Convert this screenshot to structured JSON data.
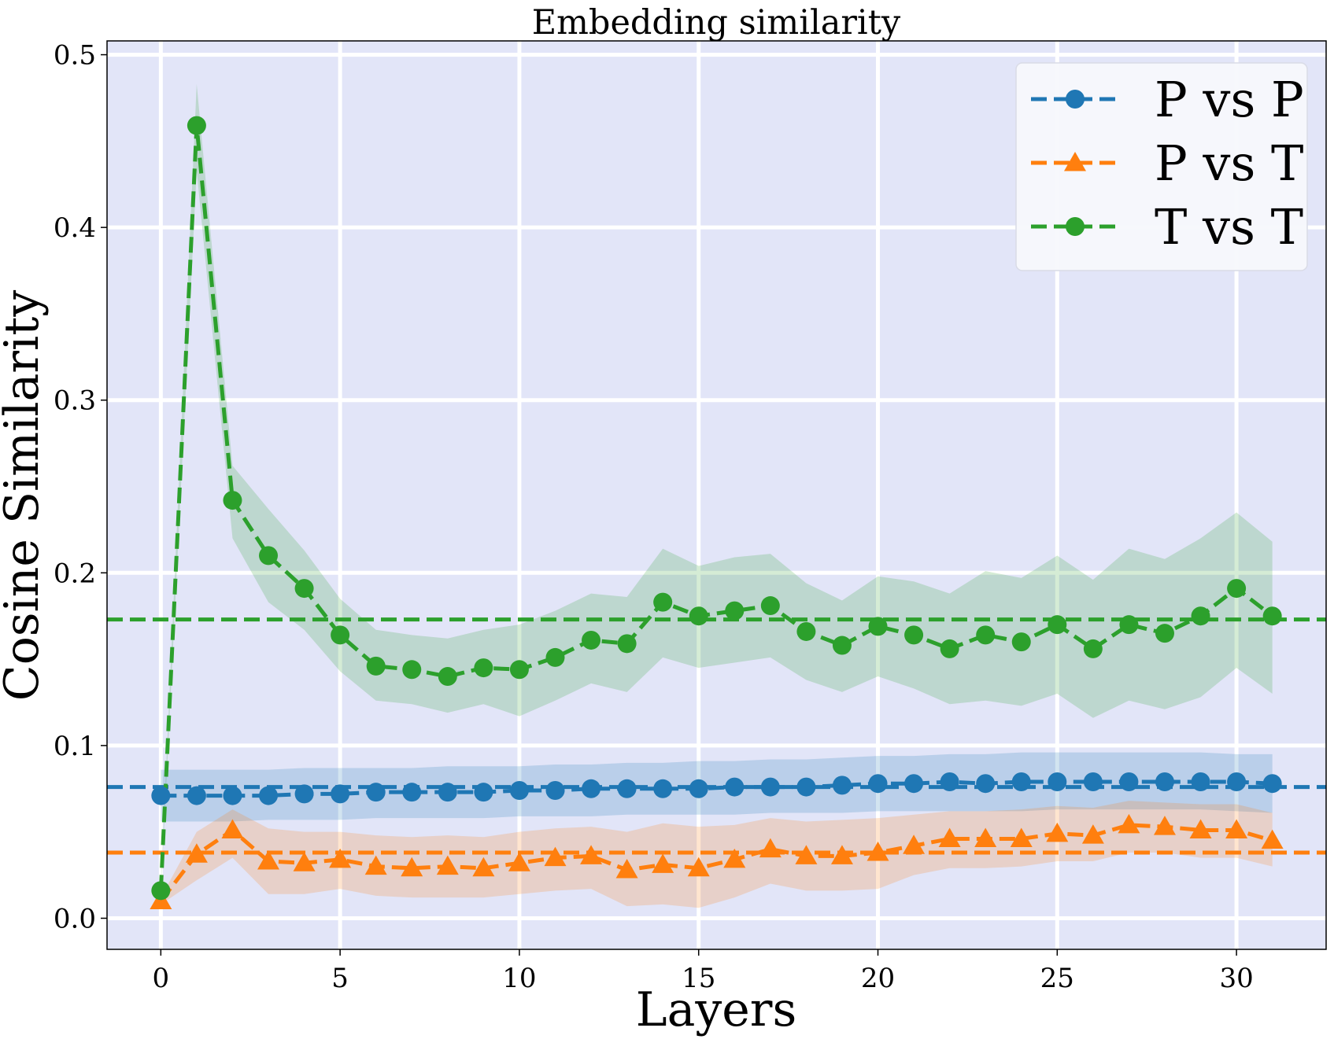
{
  "chart_data": {
    "type": "line",
    "title": "Embedding similarity",
    "xlabel": "Layers",
    "ylabel": "Cosine Similarity",
    "xlim": [
      -1.5,
      32.5
    ],
    "ylim": [
      -0.018,
      0.508
    ],
    "xticks": [
      0,
      5,
      10,
      15,
      20,
      25,
      30
    ],
    "xtick_labels": [
      "0",
      "5",
      "10",
      "15",
      "20",
      "25",
      "30"
    ],
    "yticks": [
      0.0,
      0.1,
      0.2,
      0.3,
      0.4,
      0.5
    ],
    "ytick_labels": [
      "0.0",
      "0.1",
      "0.2",
      "0.3",
      "0.4",
      "0.5"
    ],
    "grid": true,
    "legend_position": "top-right",
    "x": [
      0,
      1,
      2,
      3,
      4,
      5,
      6,
      7,
      8,
      9,
      10,
      11,
      12,
      13,
      14,
      15,
      16,
      17,
      18,
      19,
      20,
      21,
      22,
      23,
      24,
      25,
      26,
      27,
      28,
      29,
      30,
      31
    ],
    "series": [
      {
        "name": "P vs P",
        "color": "#1f77b4",
        "marker": "circle",
        "values": [
          0.071,
          0.071,
          0.071,
          0.071,
          0.072,
          0.072,
          0.073,
          0.073,
          0.073,
          0.073,
          0.074,
          0.074,
          0.075,
          0.075,
          0.075,
          0.075,
          0.076,
          0.076,
          0.076,
          0.077,
          0.078,
          0.078,
          0.079,
          0.078,
          0.079,
          0.079,
          0.079,
          0.079,
          0.079,
          0.079,
          0.079,
          0.078
        ],
        "upper": [
          0.086,
          0.086,
          0.086,
          0.086,
          0.087,
          0.087,
          0.087,
          0.087,
          0.088,
          0.088,
          0.088,
          0.089,
          0.089,
          0.09,
          0.09,
          0.091,
          0.091,
          0.092,
          0.092,
          0.093,
          0.094,
          0.094,
          0.095,
          0.095,
          0.096,
          0.096,
          0.096,
          0.096,
          0.096,
          0.096,
          0.095,
          0.095
        ],
        "lower": [
          0.056,
          0.056,
          0.056,
          0.057,
          0.057,
          0.057,
          0.058,
          0.058,
          0.058,
          0.058,
          0.059,
          0.059,
          0.059,
          0.06,
          0.06,
          0.06,
          0.06,
          0.061,
          0.061,
          0.061,
          0.062,
          0.062,
          0.062,
          0.062,
          0.062,
          0.063,
          0.063,
          0.063,
          0.063,
          0.063,
          0.062,
          0.061
        ],
        "mean_line": 0.076
      },
      {
        "name": "P vs T",
        "color": "#ff7f0e",
        "marker": "triangle",
        "values": [
          0.01,
          0.037,
          0.051,
          0.033,
          0.032,
          0.034,
          0.03,
          0.029,
          0.03,
          0.029,
          0.032,
          0.035,
          0.036,
          0.028,
          0.031,
          0.029,
          0.034,
          0.04,
          0.036,
          0.036,
          0.038,
          0.042,
          0.046,
          0.046,
          0.046,
          0.049,
          0.048,
          0.054,
          0.053,
          0.051,
          0.051,
          0.045
        ],
        "upper": [
          0.012,
          0.05,
          0.063,
          0.052,
          0.05,
          0.05,
          0.048,
          0.047,
          0.048,
          0.047,
          0.05,
          0.052,
          0.053,
          0.05,
          0.055,
          0.053,
          0.054,
          0.058,
          0.056,
          0.057,
          0.058,
          0.06,
          0.062,
          0.062,
          0.063,
          0.065,
          0.064,
          0.068,
          0.067,
          0.066,
          0.066,
          0.061
        ],
        "lower": [
          0.008,
          0.022,
          0.035,
          0.014,
          0.014,
          0.017,
          0.013,
          0.012,
          0.012,
          0.012,
          0.014,
          0.016,
          0.017,
          0.007,
          0.008,
          0.006,
          0.012,
          0.02,
          0.016,
          0.016,
          0.017,
          0.025,
          0.029,
          0.029,
          0.03,
          0.033,
          0.033,
          0.038,
          0.038,
          0.035,
          0.035,
          0.03
        ],
        "mean_line": 0.038
      },
      {
        "name": "T vs T",
        "color": "#2ca02c",
        "marker": "circle",
        "values": [
          0.016,
          0.459,
          0.242,
          0.21,
          0.191,
          0.164,
          0.146,
          0.144,
          0.14,
          0.145,
          0.144,
          0.151,
          0.161,
          0.159,
          0.183,
          0.175,
          0.178,
          0.181,
          0.166,
          0.158,
          0.169,
          0.164,
          0.156,
          0.164,
          0.16,
          0.17,
          0.156,
          0.17,
          0.165,
          0.175,
          0.191,
          0.175
        ],
        "upper": [
          0.018,
          0.483,
          0.262,
          0.237,
          0.213,
          0.185,
          0.167,
          0.164,
          0.162,
          0.167,
          0.17,
          0.178,
          0.188,
          0.186,
          0.214,
          0.204,
          0.209,
          0.211,
          0.194,
          0.184,
          0.198,
          0.195,
          0.188,
          0.201,
          0.197,
          0.21,
          0.196,
          0.214,
          0.208,
          0.22,
          0.235,
          0.218
        ],
        "lower": [
          0.014,
          0.433,
          0.22,
          0.183,
          0.167,
          0.143,
          0.126,
          0.124,
          0.119,
          0.124,
          0.117,
          0.126,
          0.136,
          0.131,
          0.151,
          0.145,
          0.148,
          0.151,
          0.138,
          0.131,
          0.14,
          0.133,
          0.124,
          0.126,
          0.123,
          0.13,
          0.116,
          0.126,
          0.121,
          0.128,
          0.145,
          0.13
        ],
        "mean_line": 0.173
      }
    ]
  }
}
